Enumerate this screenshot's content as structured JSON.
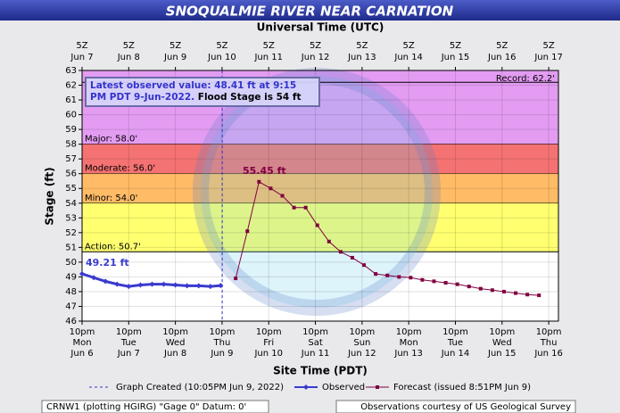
{
  "chart_data": {
    "type": "line",
    "title": "SNOQUALMIE RIVER NEAR CARNATION",
    "x2label": "Universal Time (UTC)",
    "xlabel": "Site Time (PDT)",
    "ylabel": "Stage (ft)",
    "ylim": [
      46,
      63
    ],
    "yticks": [
      46,
      47,
      48,
      49,
      50,
      51,
      52,
      53,
      54,
      55,
      56,
      57,
      58,
      59,
      60,
      61,
      62,
      63
    ],
    "xlim": [
      "2022-06-06T22:00-07:00",
      "2022-06-17T03:00-07:00"
    ],
    "xticks": [
      {
        "value": "2022-06-06T22:00-07:00",
        "label": "10pm\nMon\nJun 6"
      },
      {
        "value": "2022-06-07T22:00-07:00",
        "label": "10pm\nTue\nJun 7"
      },
      {
        "value": "2022-06-08T22:00-07:00",
        "label": "10pm\nWed\nJun 8"
      },
      {
        "value": "2022-06-09T22:00-07:00",
        "label": "10pm\nThu\nJun 9"
      },
      {
        "value": "2022-06-10T22:00-07:00",
        "label": "10pm\nFri\nJun 10"
      },
      {
        "value": "2022-06-11T22:00-07:00",
        "label": "10pm\nSat\nJun 11"
      },
      {
        "value": "2022-06-12T22:00-07:00",
        "label": "10pm\nSun\nJun 12"
      },
      {
        "value": "2022-06-13T22:00-07:00",
        "label": "10pm\nMon\nJun 13"
      },
      {
        "value": "2022-06-14T22:00-07:00",
        "label": "10pm\nTue\nJun 14"
      },
      {
        "value": "2022-06-15T22:00-07:00",
        "label": "10pm\nWed\nJun 15"
      },
      {
        "value": "2022-06-16T22:00-07:00",
        "label": "10pm\nThu\nJun 16"
      }
    ],
    "x2ticks": [
      {
        "value": "2022-06-07T05:00Z",
        "label": "5Z\nJun 7"
      },
      {
        "value": "2022-06-08T05:00Z",
        "label": "5Z\nJun 8"
      },
      {
        "value": "2022-06-09T05:00Z",
        "label": "5Z\nJun 9"
      },
      {
        "value": "2022-06-10T05:00Z",
        "label": "5Z\nJun 10"
      },
      {
        "value": "2022-06-11T05:00Z",
        "label": "5Z\nJun 11"
      },
      {
        "value": "2022-06-12T05:00Z",
        "label": "5Z\nJun 12"
      },
      {
        "value": "2022-06-13T05:00Z",
        "label": "5Z\nJun 13"
      },
      {
        "value": "2022-06-14T05:00Z",
        "label": "5Z\nJun 14"
      },
      {
        "value": "2022-06-15T05:00Z",
        "label": "5Z\nJun 15"
      },
      {
        "value": "2022-06-16T05:00Z",
        "label": "5Z\nJun 16"
      },
      {
        "value": "2022-06-17T05:00Z",
        "label": "5Z\nJun 17"
      }
    ],
    "grid": true,
    "flood_stages": [
      {
        "label": "Major: 58.0'",
        "value": 58,
        "color": "#e39cf2"
      },
      {
        "label": "Moderate: 56.0'",
        "value": 56,
        "color": "#f47272"
      },
      {
        "label": "Minor: 54.0'",
        "value": 54,
        "color": "#ffbb66"
      },
      {
        "label": "Action: 50.7'",
        "value": 50.7,
        "color": "#ffff70"
      }
    ],
    "record": {
      "label": "Record: 62.2'",
      "value": 62.2
    },
    "graph_created": {
      "label": "Graph Created (10:05PM Jun 9, 2022)",
      "x": "2022-06-09T22:05-07:00",
      "color": "#3333cc"
    },
    "series": [
      {
        "name": "Observed",
        "color": "#3a3ad0",
        "marker": "diamond",
        "x": [
          "2022-06-06T22:00-07:00",
          "2022-06-07T04:00-07:00",
          "2022-06-07T10:00-07:00",
          "2022-06-07T16:00-07:00",
          "2022-06-07T22:00-07:00",
          "2022-06-08T04:00-07:00",
          "2022-06-08T10:00-07:00",
          "2022-06-08T16:00-07:00",
          "2022-06-08T22:00-07:00",
          "2022-06-09T04:00-07:00",
          "2022-06-09T10:00-07:00",
          "2022-06-09T16:00-07:00",
          "2022-06-09T21:15-07:00"
        ],
        "values": [
          49.21,
          48.95,
          48.7,
          48.5,
          48.35,
          48.45,
          48.5,
          48.5,
          48.45,
          48.4,
          48.4,
          48.35,
          48.41
        ]
      },
      {
        "name": "Forecast (issued 8:51PM Jun 9)",
        "color": "#800040",
        "marker": "square",
        "x": [
          "2022-06-10T05:00-07:00",
          "2022-06-10T11:00-07:00",
          "2022-06-10T17:00-07:00",
          "2022-06-10T23:00-07:00",
          "2022-06-11T05:00-07:00",
          "2022-06-11T11:00-07:00",
          "2022-06-11T17:00-07:00",
          "2022-06-11T23:00-07:00",
          "2022-06-12T05:00-07:00",
          "2022-06-12T11:00-07:00",
          "2022-06-12T17:00-07:00",
          "2022-06-12T23:00-07:00",
          "2022-06-13T05:00-07:00",
          "2022-06-13T11:00-07:00",
          "2022-06-13T17:00-07:00",
          "2022-06-13T23:00-07:00",
          "2022-06-14T05:00-07:00",
          "2022-06-14T11:00-07:00",
          "2022-06-14T17:00-07:00",
          "2022-06-14T23:00-07:00",
          "2022-06-15T05:00-07:00",
          "2022-06-15T11:00-07:00",
          "2022-06-15T17:00-07:00",
          "2022-06-15T23:00-07:00",
          "2022-06-16T05:00-07:00",
          "2022-06-16T11:00-07:00",
          "2022-06-16T17:00-07:00"
        ],
        "values": [
          48.9,
          52.1,
          55.45,
          55.0,
          54.5,
          53.7,
          53.7,
          52.5,
          51.4,
          50.7,
          50.3,
          49.8,
          49.2,
          49.1,
          49.0,
          48.95,
          48.8,
          48.7,
          48.6,
          48.5,
          48.35,
          48.2,
          48.1,
          48.0,
          47.9,
          47.8,
          47.75
        ]
      }
    ],
    "annotations": [
      {
        "text": "49.21 ft",
        "x": "2022-06-06T22:00-07:00",
        "y": 49.21,
        "color": "#3a3ad0"
      },
      {
        "text": "55.45 ft",
        "x": "2022-06-10T17:00-07:00",
        "y": 55.45,
        "color": "#800040"
      }
    ],
    "info_box": {
      "observed": "Latest observed value: 48.41 ft at 9:15 PM PDT 9-Jun-2022.",
      "flood": "Flood Stage is 54 ft"
    },
    "footer": {
      "left": "CRNW1 (plotting HGIRG) \"Gage 0\" Datum: 0'",
      "right": "Observations courtesy of US Geological Survey"
    }
  }
}
